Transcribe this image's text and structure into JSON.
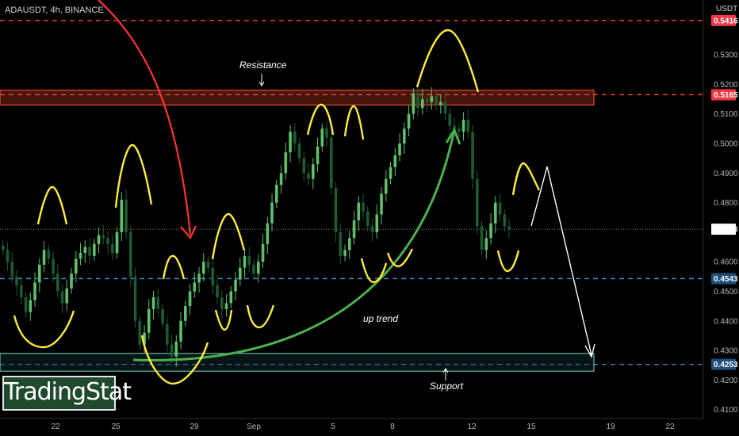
{
  "header": {
    "symbol_line": "ADAUSDT, 4h, BINANCE"
  },
  "axis_unit": "USDT",
  "logo_text": "TradingStat",
  "annotations": {
    "resistance": "Resistance",
    "support": "Support",
    "uptrend": "up trend"
  },
  "colors": {
    "bg": "#000000",
    "up": "#5fbf6c",
    "down": "#1e5b33",
    "resistance": "#ff3b3b",
    "support_line": "#3d8fd6",
    "yellow": "#ffeb3b",
    "arrow_red": "#ff3333",
    "trend_green": "#4caf50"
  },
  "chart_data": {
    "type": "candlestick",
    "title": "",
    "xlabel": "",
    "ylabel": "USDT",
    "ylim": [
      0.405,
      0.548
    ],
    "y_ticks": [
      "0.5416",
      "0.5300",
      "0.5200",
      "0.5165",
      "0.5100",
      "0.5000",
      "0.4900",
      "0.4800",
      "0.4710",
      "0.4600",
      "0.4543",
      "0.4500",
      "0.4400",
      "0.4300",
      "0.4253",
      "0.4200",
      "0.4100"
    ],
    "x_ticks": [
      "22",
      "25",
      "29",
      "Sep",
      "5",
      "8",
      "12",
      "15",
      "19",
      "22"
    ],
    "grid": false,
    "price_levels": [
      {
        "value": 0.5416,
        "label": "0.5416",
        "kind": "red_dashed"
      },
      {
        "value": 0.5165,
        "label": "0.5165",
        "kind": "red_dashed"
      },
      {
        "value": 0.4543,
        "label": "0.4543",
        "kind": "blue_dashed"
      },
      {
        "value": 0.4253,
        "label": "0.4253",
        "kind": "blue_dashed"
      },
      {
        "value": 0.471,
        "label": "0.4710",
        "kind": "current_price"
      }
    ],
    "zones": [
      {
        "name": "Resistance",
        "top": 0.518,
        "bottom": 0.513
      },
      {
        "name": "Support",
        "top": 0.429,
        "bottom": 0.423
      }
    ],
    "close_path": [
      0.464,
      0.46,
      0.455,
      0.452,
      0.448,
      0.443,
      0.447,
      0.453,
      0.459,
      0.464,
      0.461,
      0.456,
      0.45,
      0.446,
      0.451,
      0.456,
      0.461,
      0.463,
      0.465,
      0.462,
      0.466,
      0.469,
      0.468,
      0.466,
      0.463,
      0.47,
      0.481,
      0.47,
      0.455,
      0.44,
      0.432,
      0.436,
      0.444,
      0.448,
      0.444,
      0.439,
      0.432,
      0.428,
      0.433,
      0.44,
      0.445,
      0.45,
      0.453,
      0.456,
      0.46,
      0.458,
      0.452,
      0.448,
      0.444,
      0.446,
      0.45,
      0.454,
      0.458,
      0.462,
      0.459,
      0.456,
      0.46,
      0.466,
      0.473,
      0.48,
      0.486,
      0.49,
      0.497,
      0.504,
      0.5,
      0.495,
      0.49,
      0.488,
      0.493,
      0.499,
      0.505,
      0.502,
      0.485,
      0.47,
      0.462,
      0.464,
      0.468,
      0.474,
      0.48,
      0.477,
      0.472,
      0.47,
      0.476,
      0.483,
      0.488,
      0.492,
      0.496,
      0.5,
      0.505,
      0.51,
      0.517,
      0.512,
      0.515,
      0.514,
      0.516,
      0.513,
      0.514,
      0.51,
      0.506,
      0.505,
      0.504,
      0.508,
      0.504,
      0.488,
      0.472,
      0.464,
      0.468,
      0.473,
      0.48,
      0.476,
      0.472,
      0.471
    ]
  }
}
